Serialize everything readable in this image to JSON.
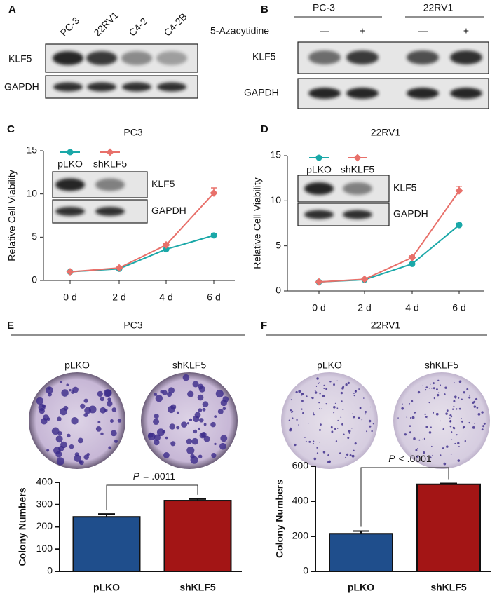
{
  "blot_a": {
    "label": "A",
    "lanes": [
      "PC-3",
      "22RV1",
      "C4-2",
      "C4-2B"
    ],
    "rows": [
      "KLF5",
      "GAPDH"
    ]
  },
  "blot_b": {
    "label": "B",
    "groups": [
      "PC-3",
      "22RV1"
    ],
    "treatment": "5-Azacytidine",
    "signs": [
      "—",
      "+",
      "—",
      "+"
    ],
    "rows": [
      "KLF5",
      "GAPDH"
    ]
  },
  "photos_e": {
    "label": "E",
    "title": "PC3",
    "labels": [
      "pLKO",
      "shKLF5"
    ]
  },
  "photos_f": {
    "label": "F",
    "title": "22RV1",
    "labels": [
      "pLKO",
      "shKLF5"
    ]
  },
  "chart_data": [
    {
      "type": "line",
      "panel": "C",
      "title": "PC3",
      "y_label": "Relative Cell Viability",
      "categories": [
        "0 d",
        "2 d",
        "4 d",
        "6 d"
      ],
      "series": [
        {
          "name": "pLKO",
          "color": "#1aa8a8",
          "values": [
            1,
            1.35,
            3.6,
            5.2
          ],
          "errors": [
            0,
            0,
            0.1,
            0.2
          ]
        },
        {
          "name": "shKLF5",
          "color": "#e8706a",
          "values": [
            1,
            1.45,
            4.1,
            10.1
          ],
          "errors": [
            0,
            0,
            0.15,
            0.6
          ]
        }
      ],
      "ylim": [
        0,
        15
      ],
      "yticks": [
        0,
        5,
        10,
        15
      ],
      "inset_rows": [
        "KLF5",
        "GAPDH"
      ]
    },
    {
      "type": "line",
      "panel": "D",
      "title": "22RV1",
      "y_label": "Relative Cell Viability",
      "categories": [
        "0 d",
        "2 d",
        "4 d",
        "6 d"
      ],
      "series": [
        {
          "name": "pLKO",
          "color": "#1aa8a8",
          "values": [
            1,
            1.25,
            3.0,
            7.3
          ],
          "errors": [
            0,
            0,
            0.1,
            0.2
          ]
        },
        {
          "name": "shKLF5",
          "color": "#e8706a",
          "values": [
            1,
            1.3,
            3.7,
            11.1
          ],
          "errors": [
            0,
            0,
            0.2,
            0.5
          ]
        }
      ],
      "ylim": [
        0,
        15
      ],
      "yticks": [
        0,
        5,
        10,
        15
      ],
      "inset_rows": [
        "KLF5",
        "GAPDH"
      ]
    },
    {
      "type": "bar",
      "y_label": "Colony Numbers",
      "categories": [
        "pLKO",
        "shKLF5"
      ],
      "values": [
        245,
        318
      ],
      "errors": [
        13,
        7
      ],
      "colors": [
        "#1f4e8c",
        "#a31515"
      ],
      "ylim": [
        0,
        400
      ],
      "yticks": [
        0,
        100,
        200,
        300,
        400
      ],
      "annotation": {
        "italic": "P",
        "text": "= .0011"
      }
    },
    {
      "type": "bar",
      "y_label": "Colony Numbers",
      "categories": [
        "pLKO",
        "shKLF5"
      ],
      "values": [
        215,
        497
      ],
      "errors": [
        15,
        5
      ],
      "colors": [
        "#1f4e8c",
        "#a31515"
      ],
      "ylim": [
        0,
        600
      ],
      "yticks": [
        0,
        200,
        400,
        600
      ],
      "annotation": {
        "italic": "P",
        "text": "< .0001"
      }
    }
  ]
}
